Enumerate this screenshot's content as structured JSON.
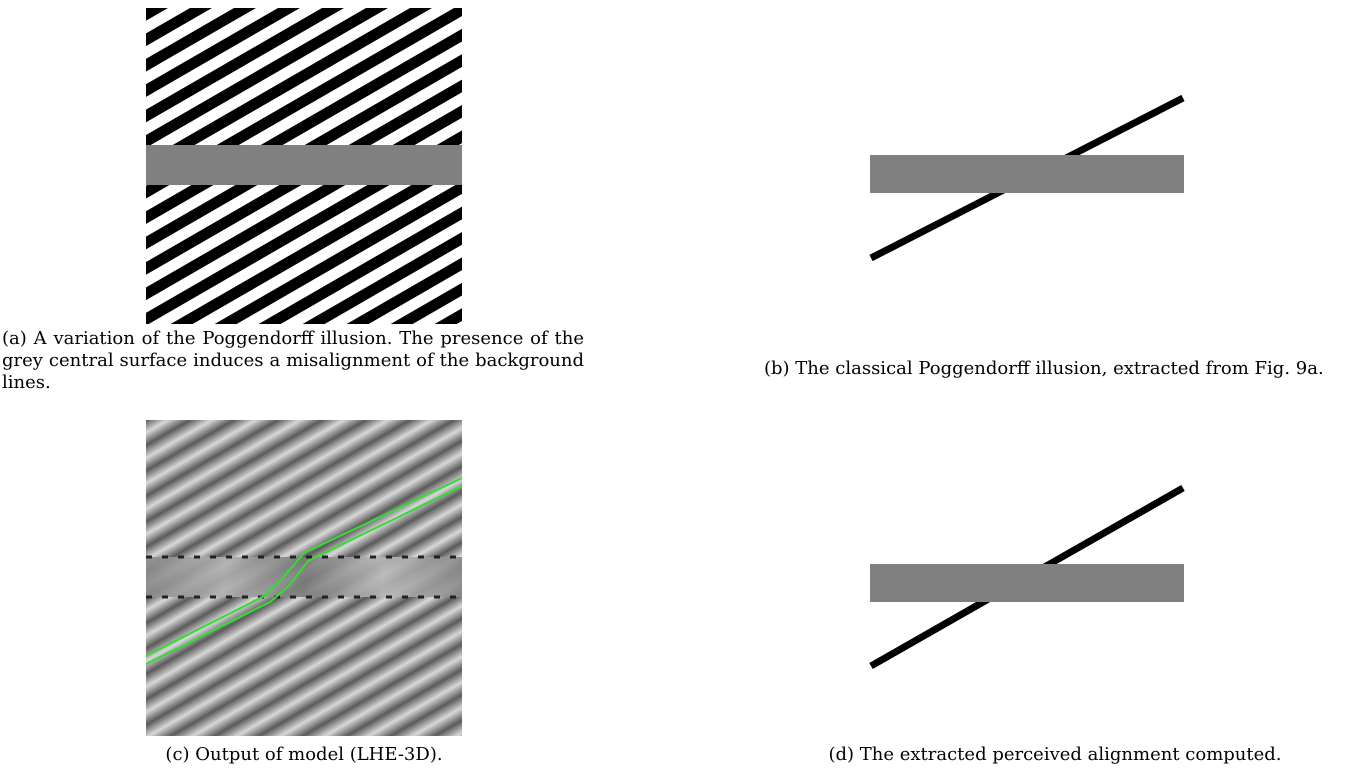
{
  "figure": {
    "panels": [
      {
        "id": "a",
        "caption": "(a) A variation of the Poggendorff illusion. The presence of the grey central surface induces a misalignment of the background lines."
      },
      {
        "id": "b",
        "caption": "(b) The classical Poggendorff illusion, extracted from Fig. 9a."
      },
      {
        "id": "c",
        "caption": "(c) Output of model (LHE-3D)."
      },
      {
        "id": "d",
        "caption": "(d) The extracted perceived alignment computed."
      }
    ],
    "colors": {
      "stripe_black": "#000000",
      "background_white": "#ffffff",
      "surface_grey": "#808080",
      "trace_green": "#33dd33"
    }
  }
}
